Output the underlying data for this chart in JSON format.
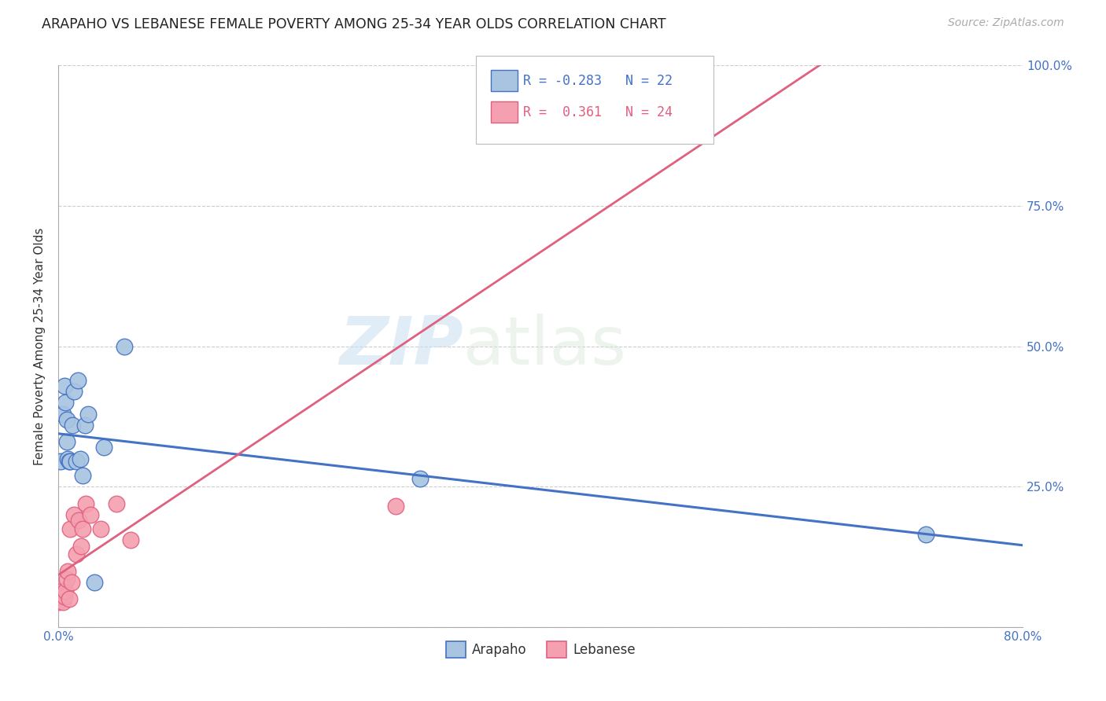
{
  "title": "ARAPAHO VS LEBANESE FEMALE POVERTY AMONG 25-34 YEAR OLDS CORRELATION CHART",
  "source": "Source: ZipAtlas.com",
  "ylabel": "Female Poverty Among 25-34 Year Olds",
  "xlim": [
    0.0,
    0.8
  ],
  "ylim": [
    0.0,
    1.0
  ],
  "xticks": [
    0.0,
    0.16,
    0.32,
    0.48,
    0.64,
    0.8
  ],
  "xticklabels": [
    "0.0%",
    "",
    "",
    "",
    "",
    "80.0%"
  ],
  "yticks": [
    0.0,
    0.25,
    0.5,
    0.75,
    1.0
  ],
  "yticklabels": [
    "",
    "25.0%",
    "50.0%",
    "75.0%",
    "100.0%"
  ],
  "arapaho_R": -0.283,
  "arapaho_N": 22,
  "lebanese_R": 0.361,
  "lebanese_N": 24,
  "arapaho_color": "#a8c4e0",
  "lebanese_color": "#f4a0b0",
  "arapaho_line_color": "#4472c4",
  "lebanese_line_color": "#e06080",
  "watermark_zip": "ZIP",
  "watermark_atlas": "atlas",
  "arapaho_x": [
    0.002,
    0.004,
    0.005,
    0.006,
    0.007,
    0.007,
    0.008,
    0.009,
    0.01,
    0.012,
    0.013,
    0.015,
    0.016,
    0.018,
    0.02,
    0.022,
    0.025,
    0.03,
    0.038,
    0.055,
    0.3,
    0.72
  ],
  "arapaho_y": [
    0.295,
    0.38,
    0.43,
    0.4,
    0.33,
    0.37,
    0.3,
    0.295,
    0.295,
    0.36,
    0.42,
    0.295,
    0.44,
    0.3,
    0.27,
    0.36,
    0.38,
    0.08,
    0.32,
    0.5,
    0.265,
    0.165
  ],
  "lebanese_x": [
    0.0,
    0.001,
    0.002,
    0.003,
    0.004,
    0.005,
    0.006,
    0.007,
    0.008,
    0.009,
    0.01,
    0.011,
    0.013,
    0.015,
    0.017,
    0.019,
    0.02,
    0.023,
    0.027,
    0.035,
    0.048,
    0.06,
    0.28,
    0.5
  ],
  "lebanese_y": [
    0.045,
    0.055,
    0.055,
    0.065,
    0.045,
    0.055,
    0.065,
    0.085,
    0.1,
    0.05,
    0.175,
    0.08,
    0.2,
    0.13,
    0.19,
    0.145,
    0.175,
    0.22,
    0.2,
    0.175,
    0.22,
    0.155,
    0.215,
    0.95
  ]
}
